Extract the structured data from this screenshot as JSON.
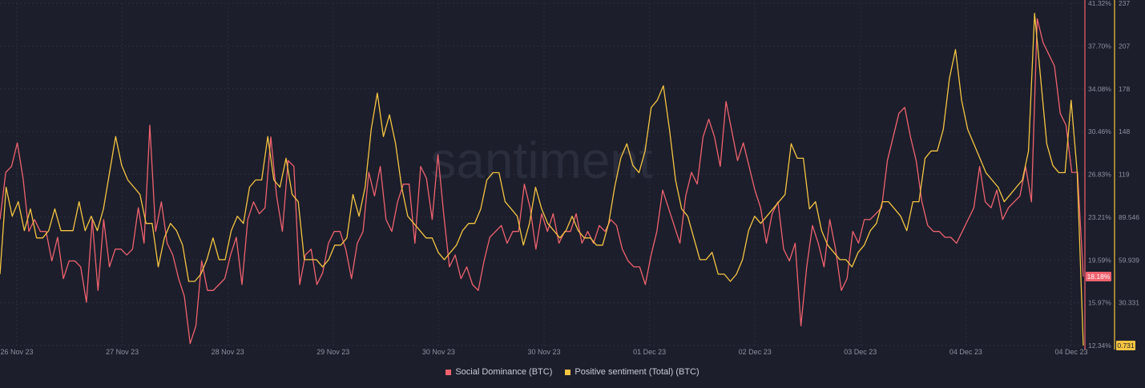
{
  "chart_data": {
    "type": "line",
    "watermark": "santiment",
    "x_tick_labels": [
      "26 Nov 23",
      "27 Nov 23",
      "28 Nov 23",
      "29 Nov 23",
      "30 Nov 23",
      "30 Nov 23",
      "01 Dec 23",
      "02 Dec 23",
      "03 Dec 23",
      "04 Dec 23",
      "04 Dec 23"
    ],
    "left_axis": {
      "tick_labels": [
        "41.32%",
        "37.70%",
        "34.08%",
        "30.46%",
        "26.83%",
        "23.21%",
        "19.59%",
        "15.97%",
        "12.34%"
      ],
      "ylim": [
        12.34,
        41.32
      ],
      "color": "#f0626f"
    },
    "right_axis": {
      "tick_labels": [
        "237",
        "207",
        "178",
        "148",
        "119",
        "89.546",
        "59.939",
        "30.331",
        "0.731"
      ],
      "ylim": [
        0.731,
        237
      ],
      "color": "#f5c542"
    },
    "last_value_tags": {
      "left": "18.18%",
      "right": "0.731"
    },
    "grid": true,
    "legend_position": "bottom-center",
    "series": [
      {
        "name": "Social Dominance (BTC)",
        "axis": "left",
        "color": "#f0626f",
        "values": [
          23.0,
          27.0,
          27.5,
          29.5,
          26.5,
          22.0,
          23.0,
          22.0,
          22.0,
          19.5,
          21.5,
          18.0,
          19.5,
          19.5,
          19.0,
          16.0,
          23.0,
          17.0,
          23.0,
          19.0,
          20.5,
          20.5,
          20.0,
          20.5,
          24.0,
          21.0,
          31.0,
          22.0,
          24.5,
          21.0,
          20.0,
          18.0,
          16.5,
          12.5,
          14.0,
          19.5,
          17.0,
          17.0,
          17.5,
          18.0,
          20.0,
          21.5,
          17.5,
          23.0,
          24.5,
          23.5,
          24.0,
          30.0,
          25.0,
          22.0,
          28.0,
          27.5,
          17.5,
          20.0,
          20.5,
          17.5,
          18.5,
          21.0,
          22.0,
          22.0,
          20.5,
          18.0,
          21.0,
          22.0,
          27.0,
          25.0,
          27.5,
          23.0,
          22.0,
          24.5,
          26.0,
          26.0,
          21.0,
          27.5,
          26.5,
          23.0,
          28.5,
          23.5,
          19.0,
          20.0,
          18.0,
          19.0,
          17.5,
          17.0,
          19.5,
          21.5,
          22.0,
          22.5,
          21.0,
          22.0,
          22.0,
          26.0,
          24.0,
          20.5,
          23.5,
          22.0,
          23.5,
          21.0,
          22.0,
          22.0,
          23.5,
          21.0,
          22.0,
          21.0,
          22.5,
          22.0,
          23.0,
          22.5,
          20.5,
          19.5,
          19.0,
          19.0,
          17.5,
          20.0,
          22.0,
          25.5,
          24.0,
          22.5,
          21.0,
          25.0,
          27.0,
          26.0,
          30.0,
          31.5,
          30.0,
          27.5,
          33.0,
          30.5,
          28.0,
          29.5,
          27.5,
          25.5,
          24.0,
          21.0,
          23.5,
          24.5,
          20.5,
          19.5,
          21.0,
          14.0,
          19.0,
          22.5,
          21.0,
          19.0,
          23.0,
          20.5,
          17.0,
          18.0,
          22.0,
          21.0,
          23.0,
          23.0,
          23.5,
          24.0,
          28.0,
          30.0,
          32.0,
          32.5,
          30.0,
          28.0,
          24.5,
          22.5,
          22.0,
          22.0,
          21.5,
          21.5,
          21.0,
          22.0,
          23.0,
          24.0,
          27.5,
          24.5,
          24.0,
          25.5,
          23.0,
          24.0,
          24.5,
          25.0,
          27.5,
          24.5,
          40.0,
          38.0,
          37.0,
          36.0,
          32.0,
          31.0,
          27.0,
          27.0,
          18.18
        ]
      },
      {
        "name": "Positive sentiment (Total) (BTC)",
        "axis": "right",
        "color": "#f5c542",
        "values": [
          50,
          110,
          90,
          100,
          80,
          95,
          75,
          75,
          80,
          95,
          80,
          80,
          80,
          100,
          80,
          90,
          80,
          95,
          120,
          145,
          125,
          115,
          110,
          105,
          85,
          85,
          55,
          75,
          85,
          80,
          70,
          45,
          45,
          50,
          60,
          75,
          60,
          60,
          80,
          90,
          85,
          110,
          115,
          115,
          145,
          115,
          110,
          130,
          105,
          100,
          60,
          60,
          60,
          55,
          60,
          70,
          70,
          75,
          105,
          90,
          110,
          150,
          175,
          145,
          160,
          140,
          110,
          90,
          85,
          80,
          75,
          75,
          65,
          60,
          65,
          70,
          80,
          85,
          85,
          95,
          115,
          120,
          120,
          100,
          95,
          90,
          70,
          85,
          110,
          95,
          85,
          80,
          75,
          80,
          90,
          80,
          75,
          75,
          70,
          70,
          85,
          110,
          130,
          140,
          125,
          120,
          135,
          165,
          170,
          180,
          150,
          115,
          95,
          90,
          75,
          60,
          60,
          65,
          50,
          50,
          45,
          50,
          60,
          80,
          90,
          85,
          90,
          95,
          100,
          105,
          140,
          130,
          130,
          95,
          100,
          80,
          70,
          65,
          60,
          60,
          55,
          65,
          70,
          80,
          85,
          100,
          100,
          95,
          90,
          80,
          100,
          100,
          130,
          135,
          135,
          150,
          185,
          205,
          170,
          150,
          140,
          130,
          120,
          115,
          110,
          100,
          105,
          110,
          115,
          135,
          230,
          185,
          140,
          125,
          120,
          120,
          170,
          120,
          0.731
        ]
      }
    ]
  }
}
